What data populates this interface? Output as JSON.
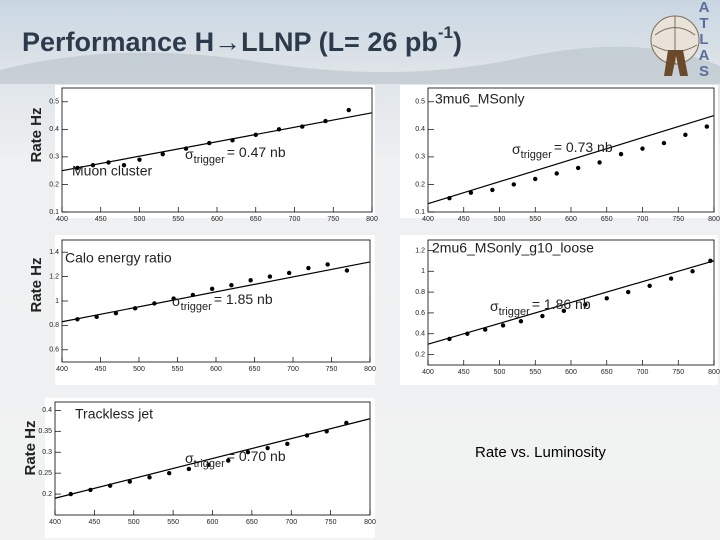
{
  "slide": {
    "title_main": "Performance H→LLNP (L= 26 pb",
    "title_sup": "-1",
    "title_end": ")",
    "logo_letters": [
      "A",
      "T",
      "L",
      "A",
      "S"
    ],
    "rate_labels": [
      "Rate Hz",
      "Rate Hz",
      "Rate Hz"
    ],
    "caption": "Rate vs. Luminosity"
  },
  "chart_data": [
    {
      "type": "scatter",
      "label": "Muon cluster",
      "sigma": "σ",
      "sigma_sub": "trigger",
      "sigma_text": "= 0.47 nb",
      "x": [
        420,
        440,
        460,
        480,
        500,
        530,
        560,
        590,
        620,
        650,
        680,
        710,
        740,
        770
      ],
      "y": [
        0.26,
        0.27,
        0.28,
        0.27,
        0.29,
        0.31,
        0.33,
        0.35,
        0.36,
        0.38,
        0.4,
        0.41,
        0.43,
        0.47
      ],
      "fit": {
        "x": [
          400,
          800
        ],
        "y": [
          0.25,
          0.46
        ]
      },
      "color": "#000000",
      "xlim": [
        400,
        800
      ],
      "xticks": [
        400,
        450,
        500,
        550,
        600,
        650,
        700,
        750,
        800
      ],
      "ylim": [
        0.1,
        0.55
      ],
      "yticks": [
        0.1,
        0.2,
        0.3,
        0.4,
        0.5
      ]
    },
    {
      "type": "scatter",
      "label": "3mu6_MSonly",
      "sigma": "σ",
      "sigma_sub": "trigger",
      "sigma_text": "= 0.73 nb",
      "x": [
        430,
        460,
        490,
        520,
        550,
        580,
        610,
        640,
        670,
        700,
        730,
        760,
        790
      ],
      "y": [
        0.15,
        0.17,
        0.18,
        0.2,
        0.22,
        0.24,
        0.26,
        0.28,
        0.31,
        0.33,
        0.35,
        0.38,
        0.41
      ],
      "fit": {
        "x": [
          400,
          800
        ],
        "y": [
          0.13,
          0.45
        ]
      },
      "color": "#000000",
      "xlim": [
        400,
        800
      ],
      "xticks": [
        400,
        450,
        500,
        550,
        600,
        650,
        700,
        750,
        800
      ],
      "ylim": [
        0.1,
        0.55
      ],
      "yticks": [
        0.1,
        0.2,
        0.3,
        0.4,
        0.5
      ]
    },
    {
      "type": "scatter",
      "label": "Calo energy ratio",
      "sigma": "σ",
      "sigma_sub": "trigger",
      "sigma_text": "= 1.85 nb",
      "x": [
        420,
        445,
        470,
        495,
        520,
        545,
        570,
        595,
        620,
        645,
        670,
        695,
        720,
        745,
        770
      ],
      "y": [
        0.85,
        0.87,
        0.9,
        0.94,
        0.98,
        1.02,
        1.05,
        1.1,
        1.13,
        1.17,
        1.2,
        1.23,
        1.27,
        1.3,
        1.25
      ],
      "fit": {
        "x": [
          400,
          800
        ],
        "y": [
          0.83,
          1.32
        ]
      },
      "color": "#000000",
      "xlim": [
        400,
        800
      ],
      "xticks": [
        400,
        450,
        500,
        550,
        600,
        650,
        700,
        750,
        800
      ],
      "ylim": [
        0.5,
        1.5
      ],
      "yticks": [
        0.6,
        0.8,
        1,
        1.2,
        1.4
      ]
    },
    {
      "type": "scatter",
      "label": "2mu6_MSonly_g10_loose",
      "sigma": "σ",
      "sigma_sub": "trigger",
      "sigma_text": "= 1.86 nb",
      "x": [
        430,
        455,
        480,
        505,
        530,
        560,
        590,
        620,
        650,
        680,
        710,
        740,
        770,
        795
      ],
      "y": [
        0.35,
        0.4,
        0.44,
        0.48,
        0.52,
        0.57,
        0.62,
        0.68,
        0.74,
        0.8,
        0.86,
        0.93,
        1.0,
        1.1
      ],
      "fit": {
        "x": [
          400,
          800
        ],
        "y": [
          0.3,
          1.1
        ]
      },
      "color": "#000000",
      "xlim": [
        400,
        800
      ],
      "xticks": [
        400,
        450,
        500,
        550,
        600,
        650,
        700,
        750,
        800
      ],
      "ylim": [
        0.1,
        1.3
      ],
      "yticks": [
        0.2,
        0.4,
        0.6,
        0.8,
        1,
        1.2
      ]
    },
    {
      "type": "scatter",
      "label": "Trackless jet",
      "sigma": "σ",
      "sigma_sub": "trigger",
      "sigma_text": "= 0.70 nb",
      "x": [
        420,
        445,
        470,
        495,
        520,
        545,
        570,
        595,
        620,
        645,
        670,
        695,
        720,
        745,
        770
      ],
      "y": [
        0.2,
        0.21,
        0.22,
        0.23,
        0.24,
        0.25,
        0.26,
        0.27,
        0.28,
        0.3,
        0.31,
        0.32,
        0.34,
        0.35,
        0.37
      ],
      "fit": {
        "x": [
          400,
          800
        ],
        "y": [
          0.19,
          0.38
        ]
      },
      "color": "#000000",
      "xlim": [
        400,
        800
      ],
      "xticks": [
        400,
        450,
        500,
        550,
        600,
        650,
        700,
        750,
        800
      ],
      "ylim": [
        0.15,
        0.42
      ],
      "yticks": [
        0.2,
        0.25,
        0.3,
        0.35,
        0.4
      ]
    }
  ]
}
